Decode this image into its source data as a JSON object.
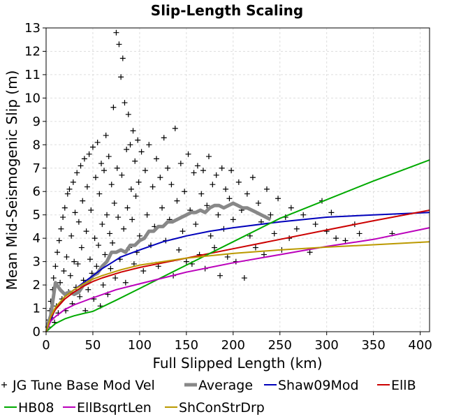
{
  "chart_data": {
    "type": "scatter",
    "title": "Slip-Length Scaling",
    "xlabel": "Full Slipped Length (km)",
    "ylabel": "Mean Mid-Seismogenic Slip (m)",
    "xlim": [
      0,
      410
    ],
    "ylim": [
      0,
      13
    ],
    "xticks": [
      "0",
      "50",
      "100",
      "150",
      "200",
      "250",
      "300",
      "350",
      "400"
    ],
    "yticks": [
      "0",
      "1",
      "2",
      "3",
      "4",
      "5",
      "6",
      "7",
      "8",
      "9",
      "10",
      "11",
      "12",
      "13"
    ],
    "grid": true,
    "legend_position": "bottom",
    "scatter_series": {
      "name": "JG Tune Base Mod Vel",
      "color": "#000000",
      "marker": "plus",
      "points": [
        [
          2,
          0.2
        ],
        [
          3,
          0.5
        ],
        [
          4,
          0.9
        ],
        [
          5,
          1.3
        ],
        [
          6,
          0.6
        ],
        [
          7,
          1.8
        ],
        [
          8,
          2.3
        ],
        [
          9,
          0.4
        ],
        [
          10,
          2.8
        ],
        [
          11,
          1.1
        ],
        [
          12,
          3.4
        ],
        [
          13,
          0.8
        ],
        [
          14,
          3.9
        ],
        [
          15,
          2.1
        ],
        [
          16,
          4.4
        ],
        [
          17,
          1.4
        ],
        [
          18,
          4.9
        ],
        [
          19,
          2.6
        ],
        [
          20,
          5.3
        ],
        [
          21,
          0.9
        ],
        [
          22,
          3.2
        ],
        [
          23,
          5.9
        ],
        [
          24,
          1.7
        ],
        [
          25,
          6.1
        ],
        [
          26,
          2.4
        ],
        [
          27,
          4.1
        ],
        [
          28,
          1.2
        ],
        [
          29,
          6.4
        ],
        [
          30,
          3.0
        ],
        [
          31,
          5.1
        ],
        [
          32,
          1.9
        ],
        [
          33,
          6.8
        ],
        [
          34,
          2.9
        ],
        [
          35,
          4.7
        ],
        [
          36,
          1.5
        ],
        [
          37,
          7.1
        ],
        [
          38,
          3.6
        ],
        [
          39,
          5.6
        ],
        [
          40,
          2.2
        ],
        [
          41,
          7.4
        ],
        [
          42,
          0.9
        ],
        [
          43,
          4.3
        ],
        [
          44,
          6.2
        ],
        [
          45,
          1.8
        ],
        [
          46,
          7.6
        ],
        [
          47,
          3.1
        ],
        [
          48,
          5.2
        ],
        [
          49,
          2.5
        ],
        [
          50,
          7.9
        ],
        [
          51,
          1.4
        ],
        [
          52,
          4.0
        ],
        [
          53,
          6.6
        ],
        [
          54,
          2.8
        ],
        [
          55,
          8.1
        ],
        [
          56,
          3.7
        ],
        [
          57,
          5.9
        ],
        [
          58,
          1.1
        ],
        [
          59,
          7.2
        ],
        [
          60,
          4.6
        ],
        [
          61,
          2.0
        ],
        [
          62,
          6.9
        ],
        [
          63,
          3.3
        ],
        [
          64,
          8.4
        ],
        [
          65,
          5.0
        ],
        [
          66,
          1.6
        ],
        [
          67,
          7.5
        ],
        [
          68,
          4.2
        ],
        [
          69,
          2.7
        ],
        [
          70,
          6.3
        ],
        [
          71,
          3.8
        ],
        [
          72,
          9.6
        ],
        [
          73,
          5.5
        ],
        [
          74,
          2.3
        ],
        [
          75,
          12.8
        ],
        [
          76,
          7.0
        ],
        [
          77,
          4.9
        ],
        [
          78,
          12.3
        ],
        [
          79,
          3.1
        ],
        [
          80,
          10.9
        ],
        [
          81,
          6.7
        ],
        [
          82,
          11.7
        ],
        [
          83,
          4.4
        ],
        [
          84,
          9.8
        ],
        [
          85,
          2.1
        ],
        [
          86,
          7.8
        ],
        [
          87,
          5.3
        ],
        [
          88,
          9.3
        ],
        [
          89,
          3.6
        ],
        [
          90,
          8.0
        ],
        [
          91,
          6.1
        ],
        [
          92,
          4.8
        ],
        [
          93,
          8.6
        ],
        [
          94,
          2.9
        ],
        [
          95,
          7.3
        ],
        [
          96,
          5.8
        ],
        [
          97,
          3.4
        ],
        [
          98,
          8.2
        ],
        [
          99,
          6.4
        ],
        [
          100,
          4.1
        ],
        [
          102,
          7.7
        ],
        [
          104,
          2.6
        ],
        [
          106,
          6.9
        ],
        [
          108,
          5.0
        ],
        [
          110,
          8.0
        ],
        [
          112,
          3.7
        ],
        [
          114,
          6.2
        ],
        [
          116,
          4.5
        ],
        [
          118,
          7.4
        ],
        [
          120,
          2.8
        ],
        [
          122,
          6.6
        ],
        [
          124,
          5.3
        ],
        [
          126,
          8.3
        ],
        [
          128,
          3.9
        ],
        [
          130,
          7.0
        ],
        [
          132,
          4.8
        ],
        [
          134,
          6.3
        ],
        [
          136,
          2.4
        ],
        [
          138,
          8.7
        ],
        [
          140,
          5.6
        ],
        [
          142,
          3.5
        ],
        [
          144,
          7.2
        ],
        [
          146,
          4.3
        ],
        [
          148,
          6.0
        ],
        [
          150,
          3.0
        ],
        [
          152,
          7.6
        ],
        [
          154,
          5.2
        ],
        [
          156,
          2.9
        ],
        [
          158,
          6.8
        ],
        [
          160,
          4.6
        ],
        [
          162,
          7.1
        ],
        [
          164,
          3.3
        ],
        [
          166,
          5.9
        ],
        [
          168,
          6.9
        ],
        [
          170,
          2.7
        ],
        [
          172,
          5.4
        ],
        [
          174,
          7.5
        ],
        [
          176,
          4.1
        ],
        [
          178,
          6.3
        ],
        [
          180,
          3.6
        ],
        [
          182,
          6.7
        ],
        [
          184,
          5.0
        ],
        [
          186,
          2.4
        ],
        [
          188,
          7.0
        ],
        [
          190,
          4.4
        ],
        [
          192,
          6.1
        ],
        [
          194,
          3.2
        ],
        [
          196,
          5.7
        ],
        [
          198,
          6.9
        ],
        [
          200,
          4.8
        ],
        [
          203,
          3.0
        ],
        [
          206,
          6.4
        ],
        [
          209,
          5.2
        ],
        [
          212,
          2.3
        ],
        [
          215,
          5.9
        ],
        [
          218,
          4.1
        ],
        [
          221,
          6.6
        ],
        [
          224,
          3.6
        ],
        [
          227,
          5.5
        ],
        [
          230,
          4.7
        ],
        [
          233,
          3.3
        ],
        [
          236,
          6.1
        ],
        [
          240,
          5.0
        ],
        [
          244,
          4.2
        ],
        [
          248,
          5.7
        ],
        [
          252,
          3.5
        ],
        [
          256,
          4.9
        ],
        [
          262,
          5.3
        ],
        [
          268,
          4.4
        ],
        [
          275,
          5.0
        ],
        [
          282,
          3.4
        ],
        [
          288,
          4.6
        ],
        [
          295,
          5.6
        ],
        [
          300,
          4.3
        ],
        [
          305,
          5.1
        ],
        [
          310,
          4.0
        ],
        [
          320,
          3.9
        ],
        [
          330,
          4.6
        ],
        [
          335,
          4.2
        ],
        [
          370,
          4.2
        ],
        [
          260,
          4.0
        ]
      ]
    },
    "series": [
      {
        "name": "Average",
        "color": "#888888",
        "width": 5,
        "x": [
          1,
          5,
          10,
          15,
          20,
          25,
          30,
          35,
          40,
          45,
          50,
          55,
          60,
          65,
          70,
          75,
          80,
          85,
          90,
          95,
          100,
          105,
          110,
          115,
          120,
          125,
          130,
          135,
          140,
          145,
          150,
          155,
          160,
          165,
          170,
          175,
          180,
          185,
          190,
          195,
          200,
          205,
          210,
          215,
          220,
          225,
          230,
          235,
          240
        ],
        "y": [
          0.2,
          0.7,
          2.1,
          1.8,
          1.6,
          1.7,
          1.6,
          1.7,
          2.0,
          2.1,
          2.4,
          2.5,
          2.8,
          3.0,
          3.4,
          3.4,
          3.5,
          3.4,
          3.7,
          3.7,
          3.9,
          4.0,
          4.3,
          4.3,
          4.5,
          4.5,
          4.7,
          4.7,
          4.8,
          4.9,
          5.0,
          5.1,
          5.1,
          5.2,
          5.1,
          5.3,
          5.4,
          5.4,
          5.3,
          5.4,
          5.5,
          5.4,
          5.3,
          5.3,
          5.2,
          5.1,
          5.0,
          4.9,
          4.8
        ]
      },
      {
        "name": "Shaw09Mod",
        "color": "#0000bb",
        "width": 2,
        "x": [
          0,
          5,
          10,
          20,
          30,
          40,
          50,
          60,
          70,
          80,
          90,
          100,
          125,
          150,
          175,
          200,
          250,
          300,
          350,
          410
        ],
        "y": [
          0.0,
          0.5,
          1.0,
          1.5,
          1.8,
          2.1,
          2.4,
          2.7,
          2.95,
          3.2,
          3.35,
          3.5,
          3.85,
          4.1,
          4.3,
          4.45,
          4.7,
          4.9,
          5.0,
          5.1
        ]
      },
      {
        "name": "EllB",
        "color": "#cc0000",
        "width": 2,
        "x": [
          0,
          5,
          10,
          20,
          30,
          40,
          50,
          60,
          80,
          100,
          125,
          150,
          200,
          250,
          300,
          350,
          410
        ],
        "y": [
          0.0,
          0.6,
          0.95,
          1.4,
          1.7,
          1.95,
          2.15,
          2.3,
          2.55,
          2.75,
          2.95,
          3.15,
          3.55,
          3.95,
          4.35,
          4.75,
          5.2
        ]
      },
      {
        "name": "HB08",
        "color": "#00aa00",
        "width": 2,
        "x": [
          0,
          10,
          20,
          30,
          40,
          50,
          75,
          100,
          150,
          200,
          250,
          300,
          350,
          410
        ],
        "y": [
          0.0,
          0.35,
          0.55,
          0.68,
          0.78,
          0.87,
          1.35,
          1.85,
          2.85,
          3.85,
          4.85,
          5.65,
          6.45,
          7.35
        ]
      },
      {
        "name": "EllBsqrtLen",
        "color": "#bb00bb",
        "width": 2,
        "x": [
          0,
          5,
          10,
          20,
          30,
          40,
          50,
          75,
          100,
          150,
          200,
          250,
          300,
          350,
          410
        ],
        "y": [
          0.0,
          0.45,
          0.65,
          0.95,
          1.15,
          1.3,
          1.45,
          1.8,
          2.05,
          2.55,
          2.95,
          3.3,
          3.65,
          3.95,
          4.45
        ]
      },
      {
        "name": "ShConStrDrp",
        "color": "#bb9900",
        "width": 2,
        "x": [
          0,
          5,
          10,
          20,
          30,
          40,
          50,
          60,
          80,
          100,
          125,
          150,
          200,
          250,
          300,
          350,
          410
        ],
        "y": [
          0.0,
          0.65,
          1.05,
          1.5,
          1.8,
          2.05,
          2.25,
          2.4,
          2.65,
          2.85,
          3.0,
          3.15,
          3.35,
          3.5,
          3.62,
          3.72,
          3.85
        ]
      }
    ]
  }
}
